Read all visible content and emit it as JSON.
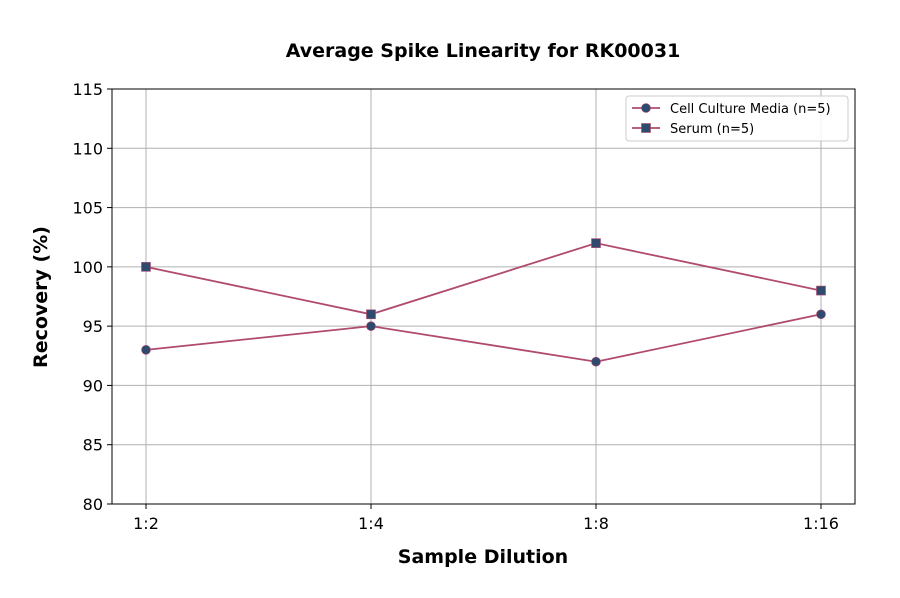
{
  "chart_data": {
    "type": "line",
    "title": "Average Spike Linearity for RK00031",
    "xlabel": "Sample Dilution",
    "ylabel": "Recovery (%)",
    "categories": [
      "1:2",
      "1:4",
      "1:8",
      "1:16"
    ],
    "ylim": [
      80,
      115
    ],
    "yticks": [
      80,
      85,
      90,
      95,
      100,
      105,
      110,
      115
    ],
    "grid": true,
    "legend_position": "top-right",
    "series": [
      {
        "name": "Cell Culture Media (n=5)",
        "values": [
          93,
          95,
          92,
          96
        ],
        "marker": "circle",
        "line_color": "#b04a6e",
        "marker_color": "#2e4a6e"
      },
      {
        "name": "Serum (n=5)",
        "values": [
          100,
          96,
          102,
          98
        ],
        "marker": "square",
        "line_color": "#b04a6e",
        "marker_color": "#2e4a6e"
      }
    ]
  }
}
